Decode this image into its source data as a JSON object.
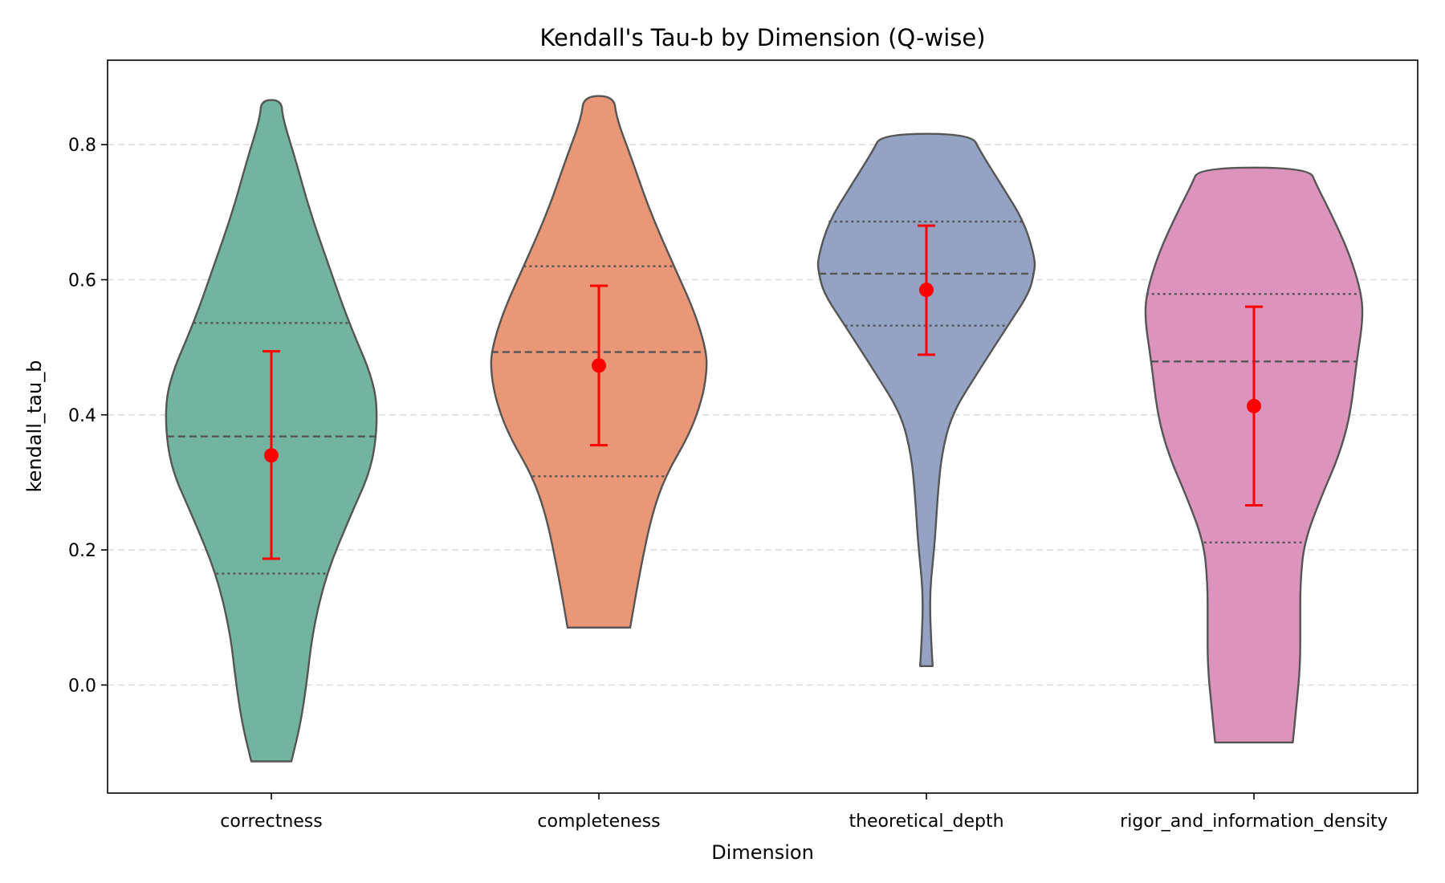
{
  "chart_data": {
    "type": "violin",
    "title": "Kendall's Tau-b by Dimension (Q-wise)",
    "xlabel": "Dimension",
    "ylabel": "kendall_tau_b",
    "ylim": [
      -0.16,
      0.925
    ],
    "yticks": [
      "0.0",
      "0.2",
      "0.4",
      "0.6",
      "0.8"
    ],
    "grid": "horizontal dashed",
    "colors": {
      "edge": "#555555",
      "mean_marker": "#ff0000",
      "grid": "#dddddd"
    },
    "series": [
      {
        "category": "correctness",
        "color": "#72b4a0",
        "min": -0.113,
        "max": 0.866,
        "q1": 0.165,
        "median": 0.368,
        "q3": 0.536,
        "mean": 0.34,
        "ci_low": 0.187,
        "ci_high": 0.494,
        "profile": [
          [
            -0.113,
            0.16
          ],
          [
            -0.06,
            0.23
          ],
          [
            0.0,
            0.28
          ],
          [
            0.08,
            0.33
          ],
          [
            0.165,
            0.44
          ],
          [
            0.25,
            0.63
          ],
          [
            0.32,
            0.8
          ],
          [
            0.39,
            0.85
          ],
          [
            0.45,
            0.82
          ],
          [
            0.536,
            0.62
          ],
          [
            0.62,
            0.46
          ],
          [
            0.7,
            0.31
          ],
          [
            0.78,
            0.19
          ],
          [
            0.84,
            0.09
          ],
          [
            0.866,
            0.08
          ]
        ]
      },
      {
        "category": "completeness",
        "color": "#e99776",
        "min": 0.085,
        "max": 0.872,
        "q1": 0.309,
        "median": 0.493,
        "q3": 0.62,
        "mean": 0.473,
        "ci_low": 0.355,
        "ci_high": 0.591,
        "profile": [
          [
            0.085,
            0.25
          ],
          [
            0.17,
            0.33
          ],
          [
            0.25,
            0.42
          ],
          [
            0.309,
            0.53
          ],
          [
            0.37,
            0.72
          ],
          [
            0.42,
            0.82
          ],
          [
            0.46,
            0.86
          ],
          [
            0.493,
            0.86
          ],
          [
            0.55,
            0.77
          ],
          [
            0.62,
            0.6
          ],
          [
            0.7,
            0.41
          ],
          [
            0.78,
            0.26
          ],
          [
            0.84,
            0.14
          ],
          [
            0.872,
            0.12
          ]
        ]
      },
      {
        "category": "theoretical_depth",
        "color": "#94a3c3",
        "min": 0.028,
        "max": 0.816,
        "q1": 0.532,
        "median": 0.609,
        "q3": 0.686,
        "mean": 0.585,
        "ci_low": 0.489,
        "ci_high": 0.68,
        "profile": [
          [
            0.028,
            0.05
          ],
          [
            0.06,
            0.04
          ],
          [
            0.1,
            0.03
          ],
          [
            0.14,
            0.03
          ],
          [
            0.18,
            0.05
          ],
          [
            0.22,
            0.07
          ],
          [
            0.28,
            0.09
          ],
          [
            0.34,
            0.12
          ],
          [
            0.4,
            0.2
          ],
          [
            0.46,
            0.4
          ],
          [
            0.532,
            0.65
          ],
          [
            0.58,
            0.82
          ],
          [
            0.61,
            0.86
          ],
          [
            0.63,
            0.87
          ],
          [
            0.686,
            0.78
          ],
          [
            0.74,
            0.6
          ],
          [
            0.79,
            0.43
          ],
          [
            0.816,
            0.36
          ]
        ]
      },
      {
        "category": "rigor_and_information_density",
        "color": "#dc94bd",
        "min": -0.085,
        "max": 0.766,
        "q1": 0.211,
        "median": 0.479,
        "q3": 0.579,
        "mean": 0.413,
        "ci_low": 0.266,
        "ci_high": 0.56,
        "profile": [
          [
            -0.085,
            0.31
          ],
          [
            -0.03,
            0.34
          ],
          [
            0.03,
            0.37
          ],
          [
            0.09,
            0.37
          ],
          [
            0.15,
            0.37
          ],
          [
            0.211,
            0.4
          ],
          [
            0.28,
            0.54
          ],
          [
            0.34,
            0.68
          ],
          [
            0.4,
            0.77
          ],
          [
            0.479,
            0.82
          ],
          [
            0.54,
            0.87
          ],
          [
            0.579,
            0.86
          ],
          [
            0.64,
            0.76
          ],
          [
            0.7,
            0.61
          ],
          [
            0.74,
            0.5
          ],
          [
            0.766,
            0.44
          ]
        ]
      }
    ]
  }
}
